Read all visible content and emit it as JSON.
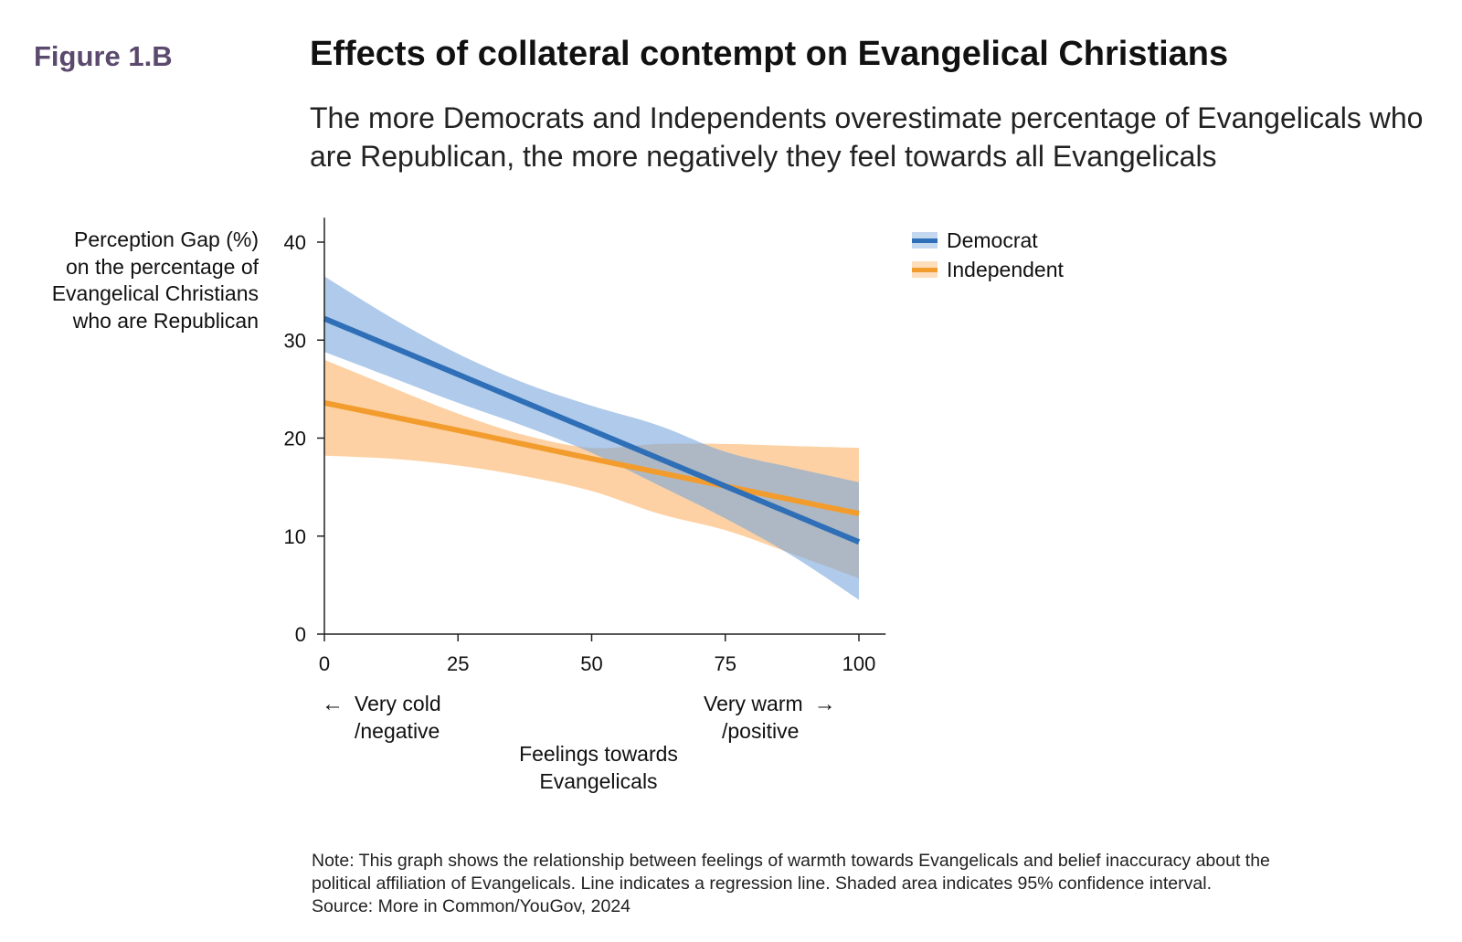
{
  "header": {
    "figure_label": "Figure 1.B",
    "title": "Effects of collateral contempt on Evangelical Christians",
    "subtitle": "The more Democrats and Independents overestimate percentage of Evangelicals who are Republican, the more negatively they feel towards all Evangelicals"
  },
  "chart_data": {
    "type": "line",
    "title": "Effects of collateral contempt on Evangelical Christians",
    "subtitle": "The more Democrats and Independents overestimate percentage of Evangelicals who are Republican, the more negatively they feel towards all Evangelicals",
    "ylabel_lines": [
      "Perception Gap (%)",
      "on the percentage of",
      "Evangelical Christians",
      "who are Republican"
    ],
    "xlabel_lines": [
      "Feelings towards",
      "Evangelicals"
    ],
    "x_ticks": [
      0,
      25,
      50,
      75,
      100
    ],
    "y_ticks": [
      0,
      10,
      20,
      30,
      40
    ],
    "xlim": [
      0,
      105
    ],
    "ylim": [
      0,
      42.5
    ],
    "x_end_labels": {
      "left": [
        "Very cold",
        "/negative"
      ],
      "right": [
        "Very warm",
        "/positive"
      ],
      "left_arrow": "←",
      "right_arrow": "→"
    },
    "legend_position": "top-right",
    "grid": false,
    "series": [
      {
        "name": "Democrat",
        "color": "#2e6fb7",
        "band_color": "#7aa6dc",
        "x": [
          0,
          25,
          50,
          75,
          100
        ],
        "y": [
          32.2,
          26.5,
          20.8,
          15.1,
          9.4
        ],
        "ci_x": [
          0,
          12.5,
          25,
          37.5,
          50,
          62.5,
          75,
          87.5,
          100
        ],
        "ci_lower": [
          28.8,
          26.2,
          23.6,
          21.2,
          18.5,
          15.2,
          11.8,
          8.0,
          3.5
        ],
        "ci_upper": [
          36.5,
          32.3,
          28.6,
          25.6,
          23.3,
          21.3,
          18.6,
          17.0,
          15.5
        ]
      },
      {
        "name": "Independent",
        "color": "#f39c2e",
        "band_color": "#fbb56b",
        "x": [
          0,
          25,
          50,
          75,
          100
        ],
        "y": [
          23.6,
          20.8,
          17.9,
          15.1,
          12.3
        ],
        "ci_x": [
          0,
          12.5,
          25,
          37.5,
          50,
          62.5,
          75,
          87.5,
          100
        ],
        "ci_lower": [
          18.2,
          17.9,
          17.2,
          16.1,
          14.6,
          12.3,
          10.6,
          8.2,
          5.7
        ],
        "ci_upper": [
          28.0,
          25.2,
          22.5,
          20.3,
          19.0,
          19.4,
          19.4,
          19.2,
          19.0
        ]
      }
    ]
  },
  "footer": {
    "note_line1": "Note: This graph shows the relationship between feelings of warmth towards Evangelicals and belief inaccuracy about the",
    "note_line2": "political affiliation of Evangelicals. Line indicates a regression line. Shaded area indicates 95% confidence interval.",
    "source": "Source: More in Common/YouGov, 2024"
  }
}
